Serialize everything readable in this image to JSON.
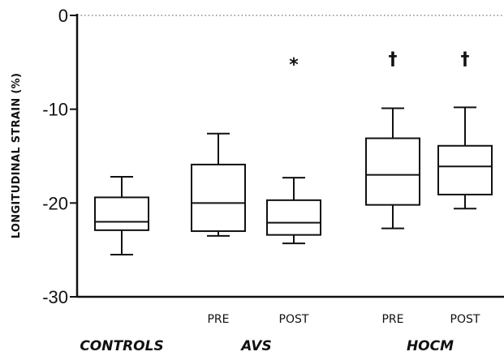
{
  "chart_data": {
    "type": "boxplot",
    "title": "",
    "xlabel": "",
    "ylabel": "LONGITUDINAL STRAIN (%)",
    "ylim": [
      -30,
      0
    ],
    "yticks": [
      0,
      -10,
      -20,
      -30
    ],
    "ytick_labels": [
      "0",
      "-10",
      "-20",
      "-30"
    ],
    "reference_line": {
      "y": 0,
      "style": "dotted"
    },
    "groups": [
      {
        "name": "CONTROLS"
      },
      {
        "name": "AVS"
      },
      {
        "name": "HOCM"
      }
    ],
    "series": [
      {
        "group": "CONTROLS",
        "label": "",
        "min": -25.5,
        "q1": -22.9,
        "median": -22.0,
        "q3": -19.4,
        "max": -17.2,
        "marker": ""
      },
      {
        "group": "AVS",
        "label": "PRE",
        "min": -23.5,
        "q1": -23.0,
        "median": -20.0,
        "q3": -15.9,
        "max": -12.6,
        "marker": ""
      },
      {
        "group": "AVS",
        "label": "POST",
        "min": -24.3,
        "q1": -23.4,
        "median": -22.1,
        "q3": -19.7,
        "max": -17.3,
        "marker": "*"
      },
      {
        "group": "HOCM",
        "label": "PRE",
        "min": -22.7,
        "q1": -20.2,
        "median": -17.0,
        "q3": -13.1,
        "max": -9.9,
        "marker": "†"
      },
      {
        "group": "HOCM",
        "label": "POST",
        "min": -20.6,
        "q1": -19.1,
        "median": -16.1,
        "q3": -13.9,
        "max": -9.8,
        "marker": "†"
      }
    ]
  }
}
